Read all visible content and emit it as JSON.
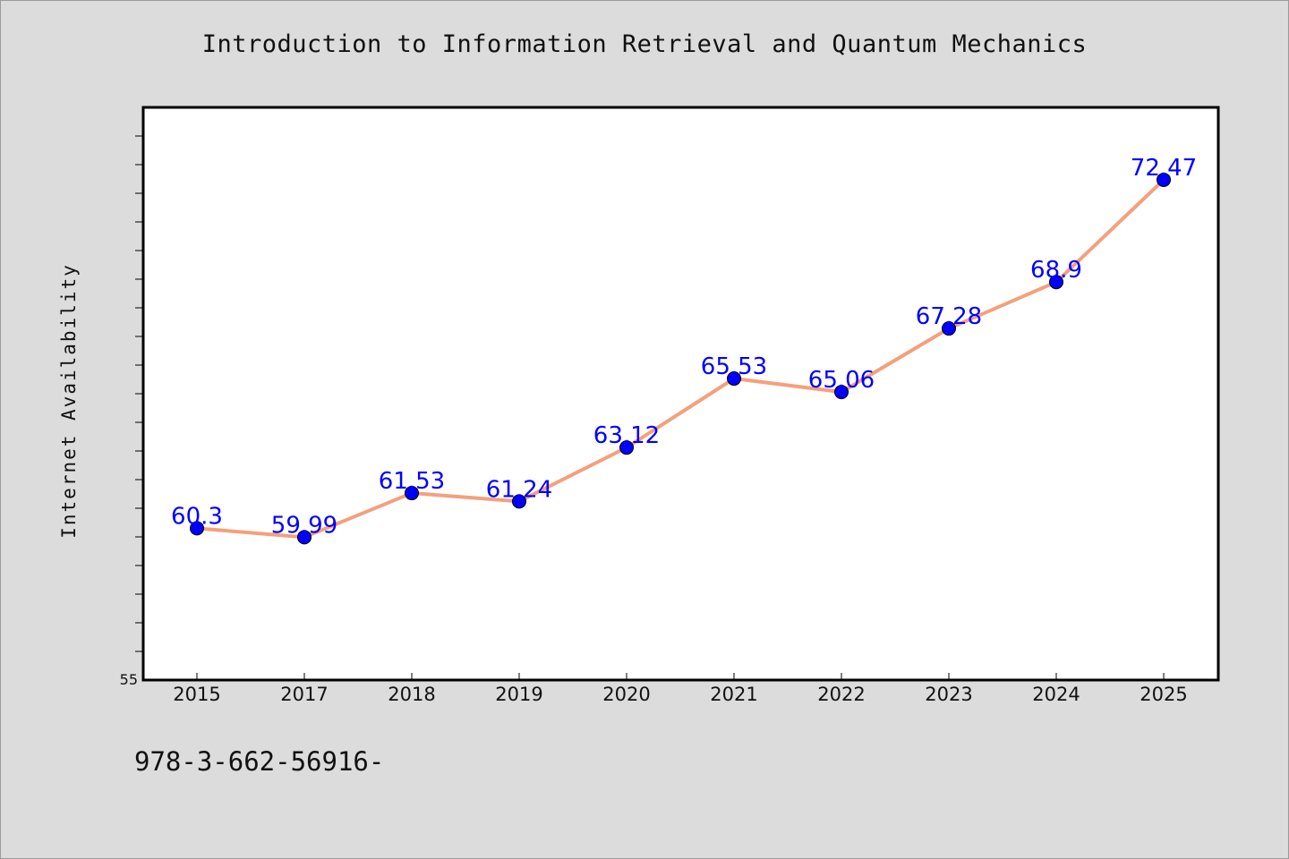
{
  "page": {
    "title": "Introduction to Information Retrieval and Quantum Mechanics",
    "footer_text": "978-3-662-56916-"
  },
  "chart_data": {
    "type": "line",
    "title": "Introduction to Information Retrieval and Quantum Mechanics",
    "xlabel": "",
    "ylabel": "Internet Availability",
    "categories": [
      "2015",
      "2017",
      "2018",
      "2019",
      "2020",
      "2021",
      "2022",
      "2023",
      "2024",
      "2025"
    ],
    "series": [
      {
        "values": [
          60.3,
          59.99,
          61.53,
          61.24,
          63.12,
          65.53,
          65.06,
          67.28,
          68.9,
          72.47
        ]
      }
    ],
    "data_labels": [
      "60.3",
      "59.99",
      "61.53",
      "61.24",
      "63.12",
      "65.53",
      "65.06",
      "67.28",
      "68.9",
      "72.47"
    ],
    "y_tick_labels": [
      "55"
    ],
    "ylim": [
      55,
      75
    ],
    "grid": false,
    "legend": "none",
    "colors": {
      "line": "#f4a07c",
      "marker": "#0000ff",
      "label": "#0000ff",
      "plot_background": "#ffffff",
      "page_background": "#dcdcdc"
    }
  }
}
